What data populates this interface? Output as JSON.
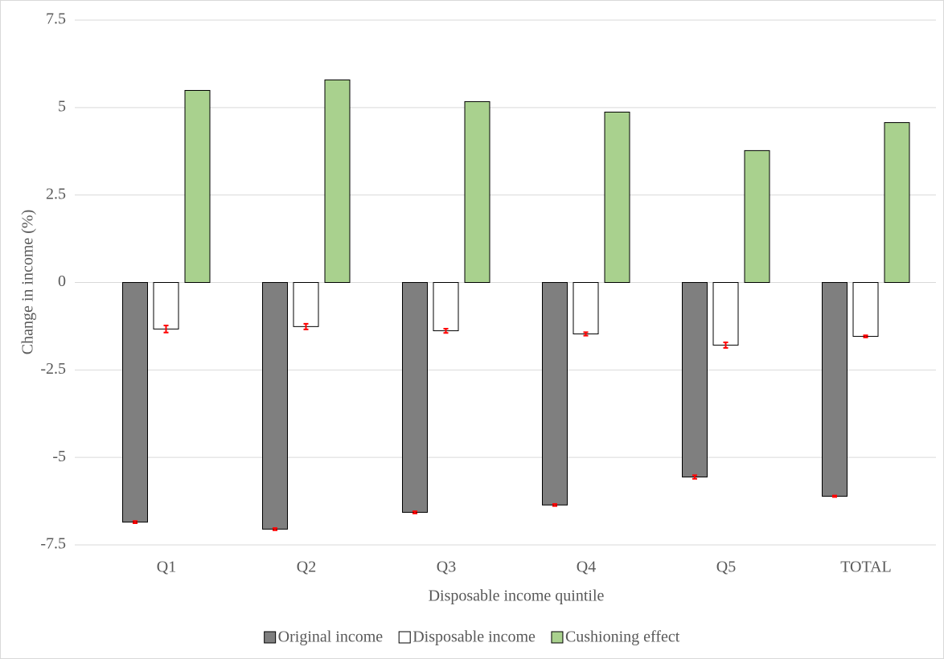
{
  "chart_data": {
    "type": "bar",
    "x_label": "Disposable income quintile",
    "y_label": "Change in income (%)",
    "categories": [
      "Q1",
      "Q2",
      "Q3",
      "Q4",
      "Q5",
      "TOTAL"
    ],
    "series": [
      {
        "name": "Original income",
        "color": "#7f7f7f",
        "values": [
          -6.85,
          -7.05,
          -6.57,
          -6.36,
          -5.56,
          -6.11
        ],
        "errors": [
          0.03,
          0.03,
          0.03,
          0.03,
          0.05,
          0.02
        ]
      },
      {
        "name": "Disposable income",
        "color": "#ffffff",
        "values": [
          -1.33,
          -1.26,
          -1.38,
          -1.47,
          -1.79,
          -1.54
        ],
        "errors": [
          0.1,
          0.08,
          0.06,
          0.05,
          0.08,
          0.03
        ]
      },
      {
        "name": "Cushioning effect",
        "color": "#a9d18e",
        "values": [
          5.49,
          5.79,
          5.17,
          4.87,
          3.77,
          4.57
        ]
      }
    ],
    "error_color": "#ff0000",
    "ylim": [
      -7.5,
      7.5
    ],
    "yticks": [
      7.5,
      5,
      2.5,
      0,
      -2.5,
      -5,
      -7.5
    ],
    "grid": true,
    "legend": "bottom"
  }
}
